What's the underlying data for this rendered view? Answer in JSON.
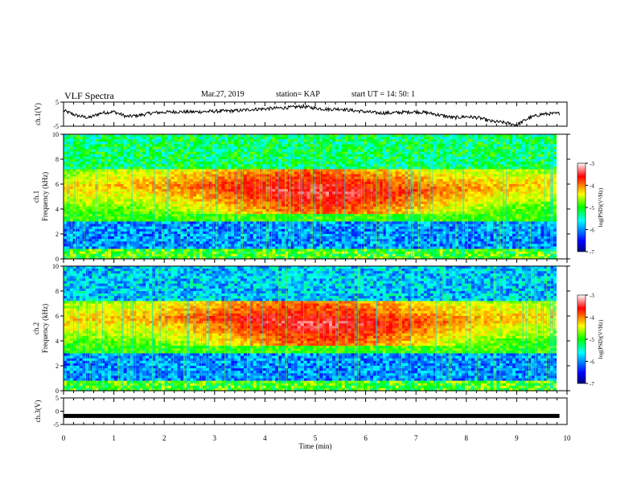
{
  "header": {
    "title": "VLF Spectra",
    "date": "Mar.27, 2019",
    "station": "station= KAP",
    "start_ut": "start  UT =   14: 50: 1"
  },
  "chart_data": [
    {
      "type": "line",
      "name": "waveform-ch1",
      "ylabel": "ch.1(V)",
      "ylim": [
        -5,
        5
      ],
      "yticks": [
        "5",
        "-5"
      ],
      "xlim": [
        0,
        10
      ],
      "x": [
        0,
        0.25,
        0.5,
        0.75,
        1,
        1.25,
        1.5,
        1.75,
        2,
        2.25,
        2.5,
        2.75,
        3,
        3.25,
        3.5,
        3.75,
        4,
        4.25,
        4.5,
        4.75,
        5,
        5.25,
        5.5,
        5.75,
        6,
        6.25,
        6.5,
        6.75,
        7,
        7.25,
        7.5,
        7.75,
        8,
        8.25,
        8.5,
        8.75,
        9,
        9.25,
        9.5,
        9.75,
        9.85
      ],
      "values": [
        1.5,
        -0.5,
        -1.5,
        0.5,
        1.0,
        -1.0,
        -0.5,
        0.5,
        0.8,
        1.0,
        0.9,
        1.0,
        1.2,
        1.3,
        1.5,
        2.0,
        2.2,
        2.5,
        2.8,
        3.2,
        2.5,
        2.0,
        2.2,
        1.5,
        1.0,
        0.5,
        0.5,
        0.8,
        1.0,
        0.5,
        -0.5,
        -1.5,
        -1.0,
        -1.5,
        -3.0,
        -3.5,
        -4.5,
        -1.5,
        0.0,
        0.2,
        0.3
      ]
    },
    {
      "type": "heatmap",
      "name": "spectrogram-ch1",
      "ylabel": "ch.1\nFrequency (kHz)",
      "xlim": [
        0,
        10
      ],
      "ylim": [
        0,
        10
      ],
      "yticks": [
        "0",
        "2",
        "4",
        "6",
        "8",
        "10"
      ],
      "colorbar": {
        "label": "log(PSD)(V²/Hz)",
        "range": [
          -7,
          -3
        ],
        "ticks": [
          "-3",
          "-4",
          "-5",
          "-6",
          "-7"
        ]
      }
    },
    {
      "type": "heatmap",
      "name": "spectrogram-ch2",
      "ylabel": "ch.2\nFrequency (kHz)",
      "xlim": [
        0,
        10
      ],
      "ylim": [
        0,
        10
      ],
      "yticks": [
        "0",
        "2",
        "4",
        "6",
        "8",
        "10"
      ],
      "colorbar": {
        "label": "log(PSD)(V²/Hz)",
        "range": [
          -7,
          -3
        ],
        "ticks": [
          "-3",
          "-4",
          "-5",
          "-6",
          "-7"
        ]
      }
    },
    {
      "type": "line",
      "name": "waveform-ch3",
      "ylabel": "ch.3(V)",
      "ylim": [
        -5,
        5
      ],
      "yticks": [
        "5",
        "0",
        "-5"
      ],
      "xlim": [
        0,
        10
      ],
      "x": [
        0,
        9.85
      ],
      "values": [
        -1.8,
        -1.8
      ],
      "xlabel": "Time (min)",
      "xticks": [
        "0",
        "1",
        "2",
        "3",
        "4",
        "5",
        "6",
        "7",
        "8",
        "9",
        "10"
      ]
    }
  ]
}
